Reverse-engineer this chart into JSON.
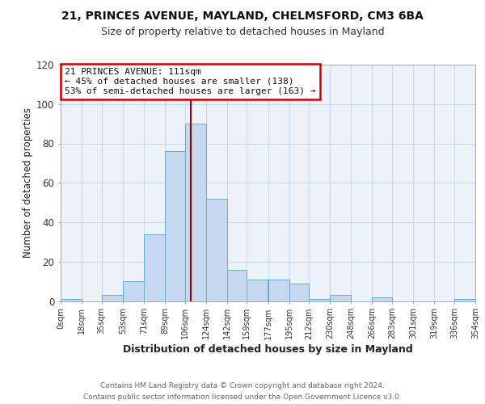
{
  "title1": "21, PRINCES AVENUE, MAYLAND, CHELMSFORD, CM3 6BA",
  "title2": "Size of property relative to detached houses in Mayland",
  "xlabel": "Distribution of detached houses by size in Mayland",
  "ylabel": "Number of detached properties",
  "bin_edges": [
    0,
    18,
    35,
    53,
    71,
    89,
    106,
    124,
    142,
    159,
    177,
    195,
    212,
    230,
    248,
    266,
    283,
    301,
    319,
    336,
    354
  ],
  "counts": [
    1,
    0,
    3,
    10,
    34,
    76,
    90,
    52,
    16,
    11,
    11,
    9,
    1,
    3,
    0,
    2,
    0,
    0,
    0,
    1
  ],
  "bar_facecolor": "#c5d8f0",
  "bar_edgecolor": "#6aaad4",
  "grid_color": "#c8d8e8",
  "background_color": "#edf2f9",
  "vline_x": 111,
  "vline_color": "#990000",
  "annotation_line1": "21 PRINCES AVENUE: 111sqm",
  "annotation_line2": "← 45% of detached houses are smaller (138)",
  "annotation_line3": "53% of semi-detached houses are larger (163) →",
  "annotation_box_edgecolor": "#cc0000",
  "annotation_box_facecolor": "#ffffff",
  "tick_labels": [
    "0sqm",
    "18sqm",
    "35sqm",
    "53sqm",
    "71sqm",
    "89sqm",
    "106sqm",
    "124sqm",
    "142sqm",
    "159sqm",
    "177sqm",
    "195sqm",
    "212sqm",
    "230sqm",
    "248sqm",
    "266sqm",
    "283sqm",
    "301sqm",
    "319sqm",
    "336sqm",
    "354sqm"
  ],
  "ylim": [
    0,
    120
  ],
  "yticks": [
    0,
    20,
    40,
    60,
    80,
    100,
    120
  ],
  "footer_line1": "Contains HM Land Registry data © Crown copyright and database right 2024.",
  "footer_line2": "Contains public sector information licensed under the Open Government Licence v3.0."
}
